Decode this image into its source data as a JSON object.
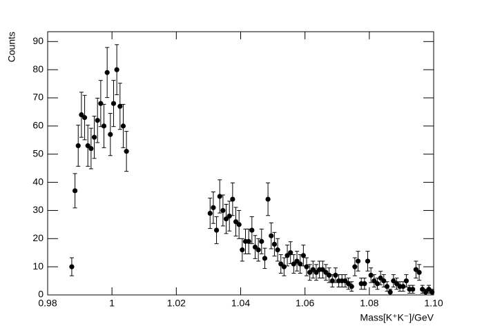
{
  "chart_data": {
    "type": "scatter",
    "x_label": "Mass[K⁺K⁻]/GeV",
    "y_label": "Counts",
    "color": "#000000",
    "xlim": [
      0.98,
      1.1
    ],
    "ylim": [
      0,
      93.5
    ],
    "xticks": [
      0.98,
      1,
      1.02,
      1.04,
      1.06,
      1.08,
      {
        "value": 1.1,
        "label": "1.10"
      }
    ],
    "yticks": [
      0,
      10,
      20,
      30,
      40,
      50,
      60,
      70,
      80,
      90
    ],
    "x": [
      0.9875,
      0.9885,
      0.9895,
      0.9905,
      0.9915,
      0.9925,
      0.9935,
      0.9945,
      0.9955,
      0.9965,
      0.9975,
      0.9985,
      0.9995,
      1.0005,
      1.0015,
      1.0025,
      1.0035,
      1.0045,
      1.0305,
      1.0315,
      1.0325,
      1.0335,
      1.0345,
      1.0355,
      1.0365,
      1.0375,
      1.0385,
      1.0395,
      1.0405,
      1.0415,
      1.0425,
      1.0435,
      1.0445,
      1.0455,
      1.0465,
      1.0475,
      1.0485,
      1.0495,
      1.0505,
      1.0515,
      1.0525,
      1.0535,
      1.0545,
      1.0555,
      1.0565,
      1.0575,
      1.0585,
      1.0595,
      1.0605,
      1.0615,
      1.0625,
      1.0635,
      1.0645,
      1.0655,
      1.0665,
      1.0675,
      1.0685,
      1.0695,
      1.0705,
      1.0715,
      1.0725,
      1.0735,
      1.0745,
      1.0755,
      1.0765,
      1.0775,
      1.0785,
      1.0795,
      1.0805,
      1.0815,
      1.0825,
      1.0835,
      1.0845,
      1.0855,
      1.0865,
      1.0875,
      1.0885,
      1.0895,
      1.0905,
      1.0915,
      1.0925,
      1.0935,
      1.0945,
      1.0955,
      1.0965,
      1.0975,
      1.0985,
      1.0995
    ],
    "values": [
      10,
      37,
      53,
      64,
      63,
      53,
      52,
      56,
      62,
      68,
      60,
      79,
      57,
      68,
      80,
      67,
      60,
      51,
      29,
      31,
      23,
      35,
      30,
      27,
      28,
      34,
      26,
      25,
      16,
      19,
      19,
      23,
      17,
      16,
      19,
      13,
      34,
      21,
      18,
      16,
      11,
      10,
      14,
      15,
      11,
      12,
      11,
      14,
      10,
      8,
      9,
      8,
      9,
      9,
      8,
      7,
      5,
      7,
      5,
      5,
      5,
      4,
      3,
      10,
      12,
      4,
      4,
      12,
      7,
      5,
      4,
      6,
      5,
      3,
      1,
      5,
      4,
      3,
      3,
      5,
      2,
      2,
      9,
      8,
      2,
      1,
      2,
      1
    ],
    "errors": [
      3.2,
      6.1,
      7.3,
      8,
      7.9,
      7.3,
      7.2,
      7.5,
      7.9,
      8.2,
      7.7,
      8.9,
      7.5,
      8.2,
      8.9,
      8.2,
      7.7,
      7.1,
      5.4,
      5.6,
      4.8,
      5.9,
      5.5,
      5.2,
      5.3,
      5.8,
      5.1,
      5,
      4,
      4.4,
      4.4,
      4.8,
      4.1,
      4,
      4.4,
      3.6,
      5.8,
      4.6,
      4.2,
      4,
      3.3,
      3.2,
      3.7,
      3.9,
      3.3,
      3.5,
      3.3,
      3.7,
      3.2,
      2.8,
      3,
      2.8,
      3,
      3,
      2.8,
      2.6,
      2.2,
      2.6,
      2.2,
      2.2,
      2.2,
      2,
      1.7,
      3.2,
      3.5,
      2,
      2,
      3.5,
      2.6,
      2.2,
      2,
      2.4,
      2.2,
      1.7,
      1,
      2.2,
      2,
      1.7,
      1.7,
      2.2,
      1.4,
      1.4,
      3,
      2.8,
      1.4,
      1,
      1.4,
      1
    ]
  }
}
